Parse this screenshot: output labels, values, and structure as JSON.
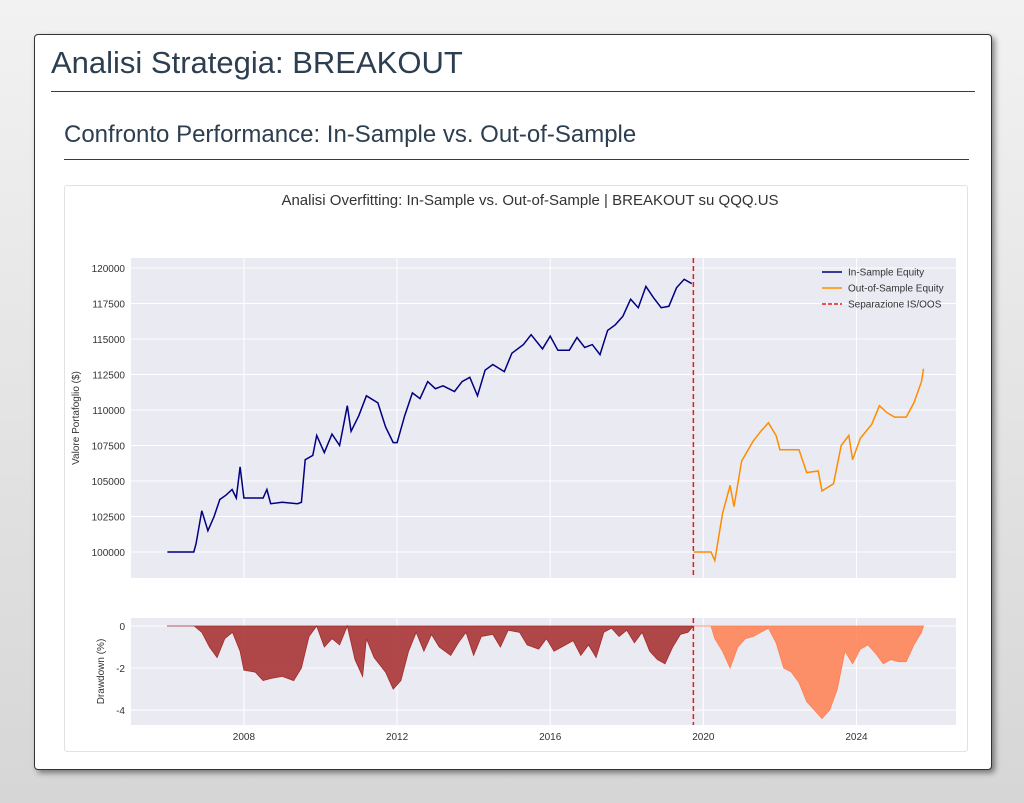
{
  "header": {
    "title": "Analisi Strategia: BREAKOUT",
    "subtitle": "Confronto Performance: In-Sample vs. Out-of-Sample"
  },
  "chart_data": [
    {
      "type": "line",
      "title": "Analisi Overfitting: In-Sample vs. Out-of-Sample | BREAKOUT su QQQ.US",
      "ylabel": "Valore Portafoglio ($)",
      "xlim": [
        2005.05,
        2026.6
      ],
      "ylim": [
        98170,
        120700
      ],
      "yticks": [
        100000,
        102500,
        105000,
        107500,
        110000,
        112500,
        115000,
        117500,
        120000
      ],
      "grid": true,
      "legend": "upper right",
      "series": [
        {
          "name": "In-Sample Equity",
          "color": "#000080",
          "x": [
            2006.0,
            2006.69,
            2006.75,
            2006.9,
            2007.06,
            2007.22,
            2007.37,
            2007.53,
            2007.69,
            2007.8,
            2007.9,
            2008.0,
            2008.5,
            2008.6,
            2008.7,
            2009.0,
            2009.4,
            2009.5,
            2009.6,
            2009.8,
            2009.9,
            2010.1,
            2010.3,
            2010.5,
            2010.7,
            2010.8,
            2011.0,
            2011.2,
            2011.5,
            2011.7,
            2011.9,
            2012.0,
            2012.2,
            2012.4,
            2012.6,
            2012.8,
            2013.0,
            2013.2,
            2013.5,
            2013.7,
            2013.9,
            2014.1,
            2014.3,
            2014.5,
            2014.8,
            2015.0,
            2015.3,
            2015.5,
            2015.8,
            2016.0,
            2016.2,
            2016.5,
            2016.7,
            2016.9,
            2017.1,
            2017.3,
            2017.5,
            2017.7,
            2017.9,
            2018.1,
            2018.3,
            2018.5,
            2018.7,
            2018.9,
            2019.1,
            2019.3,
            2019.5,
            2019.7
          ],
          "values": [
            100000,
            100000,
            100600,
            102900,
            101500,
            102500,
            103700,
            104000,
            104400,
            103800,
            106000,
            103800,
            103800,
            104400,
            103400,
            103500,
            103400,
            103500,
            106500,
            106800,
            108200,
            107000,
            108300,
            107500,
            110300,
            108500,
            109600,
            111000,
            110500,
            108800,
            107700,
            107700,
            109600,
            111200,
            110800,
            112000,
            111500,
            111700,
            111300,
            112000,
            112300,
            111000,
            112800,
            113200,
            112700,
            114000,
            114600,
            115300,
            114300,
            115200,
            114200,
            114200,
            115100,
            114400,
            114600,
            113900,
            115600,
            116000,
            116600,
            117800,
            117200,
            118700,
            117900,
            117200,
            117300,
            118600,
            119200,
            118900
          ]
        },
        {
          "name": "Out-of-Sample Equity",
          "color": "#ff8c00",
          "x": [
            2019.75,
            2020.2,
            2020.3,
            2020.5,
            2020.7,
            2020.8,
            2021.0,
            2021.3,
            2021.5,
            2021.7,
            2021.9,
            2022.0,
            2022.5,
            2022.7,
            2023.0,
            2023.1,
            2023.4,
            2023.6,
            2023.8,
            2023.9,
            2024.1,
            2024.4,
            2024.6,
            2024.8,
            2025.0,
            2025.3,
            2025.5,
            2025.7,
            2025.75
          ],
          "values": [
            100000,
            100000,
            99400,
            102700,
            104700,
            103200,
            106400,
            107800,
            108500,
            109100,
            108200,
            107200,
            107200,
            105600,
            105700,
            104300,
            104800,
            107500,
            108200,
            106500,
            108000,
            109000,
            110300,
            109800,
            109500,
            109500,
            110500,
            112000,
            112900
          ]
        }
      ],
      "reference_lines": [
        {
          "name": "Separazione IS/OOS",
          "color": "#e31a1c",
          "x": 2019.74
        }
      ]
    },
    {
      "type": "area",
      "ylabel": "Drawdown (%)",
      "xlim": [
        2005.05,
        2026.6
      ],
      "ylim": [
        -4.71,
        0.38
      ],
      "xticks": [
        2008,
        2012,
        2016,
        2020,
        2024
      ],
      "yticks": [
        0,
        -2,
        -4
      ],
      "grid": true,
      "series": [
        {
          "color": "#a52a2a",
          "x": [
            2006.0,
            2006.7,
            2006.9,
            2007.1,
            2007.3,
            2007.5,
            2007.7,
            2007.9,
            2008.0,
            2008.3,
            2008.5,
            2008.7,
            2009.0,
            2009.3,
            2009.5,
            2009.7,
            2009.9,
            2010.1,
            2010.3,
            2010.5,
            2010.7,
            2010.9,
            2011.1,
            2011.2,
            2011.4,
            2011.7,
            2011.9,
            2012.1,
            2012.3,
            2012.5,
            2012.7,
            2012.9,
            2013.1,
            2013.4,
            2013.6,
            2013.8,
            2014.0,
            2014.2,
            2014.5,
            2014.7,
            2014.9,
            2015.2,
            2015.4,
            2015.7,
            2015.9,
            2016.1,
            2016.3,
            2016.6,
            2016.8,
            2017.0,
            2017.2,
            2017.4,
            2017.6,
            2017.8,
            2018.0,
            2018.2,
            2018.4,
            2018.6,
            2018.8,
            2019.0,
            2019.2,
            2019.4,
            2019.6,
            2019.74
          ],
          "values": [
            0,
            0,
            -0.3,
            -1.0,
            -1.5,
            -0.6,
            -0.3,
            -1.2,
            -2.1,
            -2.2,
            -2.6,
            -2.5,
            -2.4,
            -2.6,
            -2.0,
            -0.5,
            0,
            -1.0,
            -0.6,
            -0.9,
            0,
            -1.6,
            -2.4,
            -0.6,
            -1.5,
            -2.2,
            -3.0,
            -2.6,
            -1.2,
            -0.3,
            -1.2,
            -0.4,
            -1.0,
            -1.4,
            -0.8,
            -0.3,
            -1.4,
            -0.5,
            -0.4,
            -1.0,
            -0.2,
            -0.3,
            -0.9,
            -1.1,
            -0.6,
            -1.2,
            -1.0,
            -0.7,
            -1.4,
            -0.9,
            -1.5,
            -0.3,
            -0.1,
            -0.5,
            -0.2,
            -0.8,
            -0.3,
            -1.2,
            -1.6,
            -1.8,
            -1.0,
            -0.4,
            -0.3,
            0
          ]
        },
        {
          "color": "#ff7f50",
          "x": [
            2019.75,
            2020.2,
            2020.3,
            2020.5,
            2020.7,
            2020.9,
            2021.1,
            2021.3,
            2021.5,
            2021.7,
            2021.9,
            2022.1,
            2022.3,
            2022.5,
            2022.7,
            2022.9,
            2023.1,
            2023.3,
            2023.5,
            2023.7,
            2023.9,
            2024.1,
            2024.3,
            2024.5,
            2024.7,
            2024.9,
            2025.1,
            2025.3,
            2025.5,
            2025.7,
            2025.75
          ],
          "values": [
            0,
            0,
            -0.6,
            -1.2,
            -2.0,
            -1.0,
            -0.6,
            -0.5,
            -0.3,
            -0.1,
            -0.8,
            -2.0,
            -2.2,
            -2.7,
            -3.6,
            -4.0,
            -4.4,
            -4.0,
            -3.0,
            -1.2,
            -1.8,
            -1.1,
            -0.9,
            -1.3,
            -1.8,
            -1.6,
            -1.7,
            -1.7,
            -0.9,
            -0.3,
            0
          ]
        }
      ],
      "reference_lines": [
        {
          "color": "#e31a1c",
          "x": 2019.74
        }
      ]
    }
  ]
}
